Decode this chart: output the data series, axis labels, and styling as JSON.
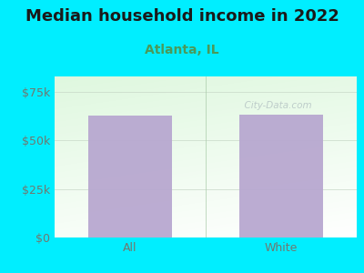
{
  "title": "Median household income in 2022",
  "subtitle": "Atlanta, IL",
  "categories": [
    "All",
    "White"
  ],
  "values": [
    63000,
    63500
  ],
  "bar_color": "#b8a8d0",
  "background_color": "#00eeff",
  "title_fontsize": 13,
  "subtitle_fontsize": 10,
  "tick_label_color": "#707870",
  "subtitle_color": "#4a9a5a",
  "yticks": [
    0,
    25000,
    50000,
    75000
  ],
  "ytick_labels": [
    "$0",
    "$25k",
    "$50k",
    "$75k"
  ],
  "ylim": [
    0,
    83000
  ],
  "watermark": "  City-Data.com",
  "bar_width": 0.55
}
